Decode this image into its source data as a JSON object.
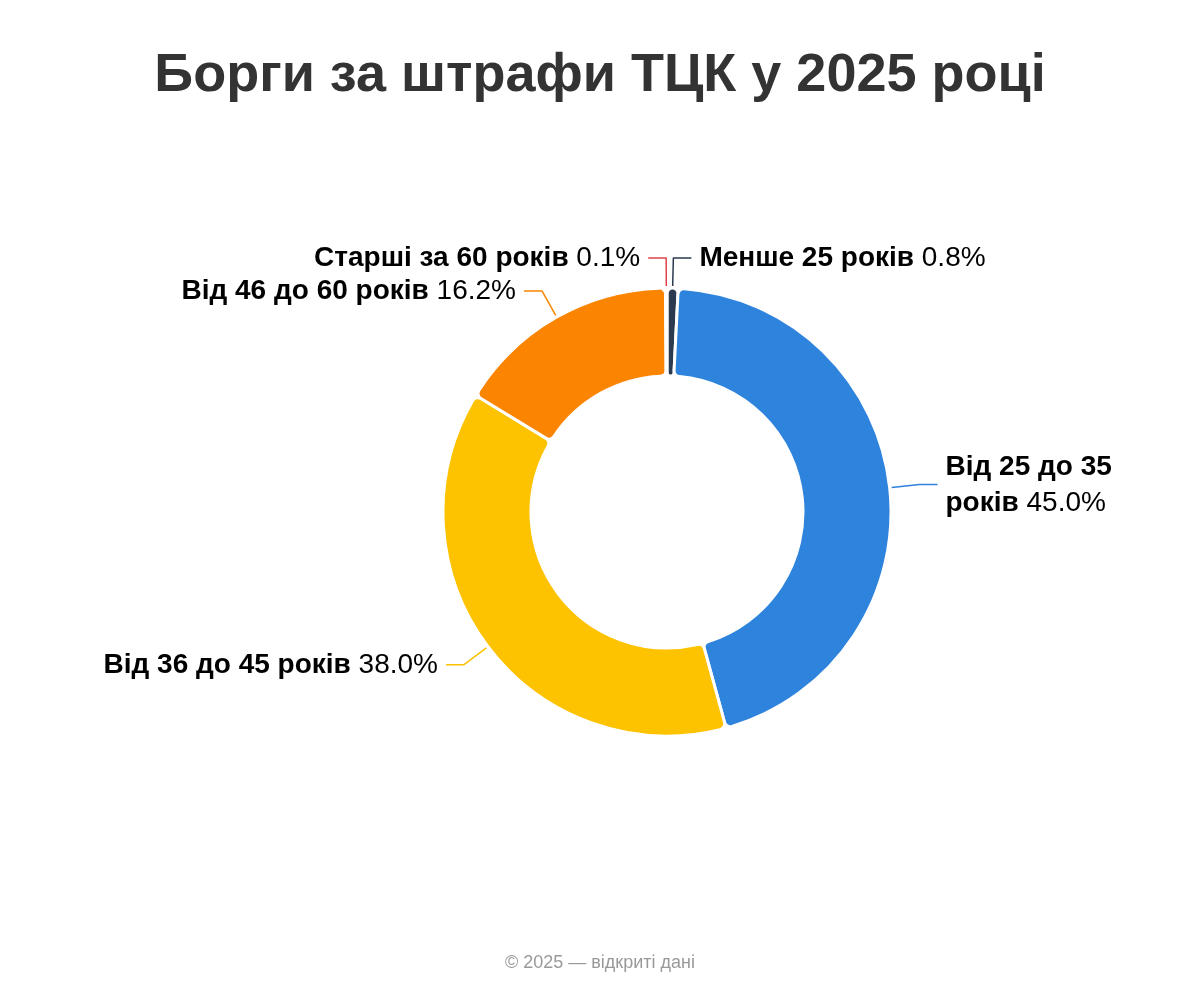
{
  "chart_data": {
    "type": "donut",
    "title": "Борги за штрафи ТЦК у 2025 році",
    "categories": [
      "Менше 25 років",
      "Від 25 до 35 років",
      "Від 36 до 45 років",
      "Від 46 до 60 років",
      "Старші за 60 років"
    ],
    "values": [
      0.8,
      45.0,
      38.0,
      16.2,
      0.1
    ],
    "value_labels": [
      "0.8%",
      "45.0%",
      "38.0%",
      "16.2%",
      "0.1%"
    ],
    "colors": [
      "#2b3a4e",
      "#2e83dc",
      "#fdc200",
      "#fb8500",
      "#e0434b"
    ],
    "annotations": [
      "© 2025 — відкриті дані"
    ]
  }
}
